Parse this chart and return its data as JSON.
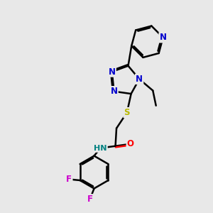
{
  "bg_color": "#e8e8e8",
  "bond_color": "#000000",
  "N_color": "#0000cd",
  "O_color": "#ff0000",
  "S_color": "#b8b800",
  "F_color": "#cc00cc",
  "H_color": "#008080",
  "line_width": 1.8,
  "dbo": 0.055,
  "figsize": [
    3.0,
    3.0
  ],
  "dpi": 100,
  "xlim": [
    0,
    10
  ],
  "ylim": [
    0,
    10
  ]
}
